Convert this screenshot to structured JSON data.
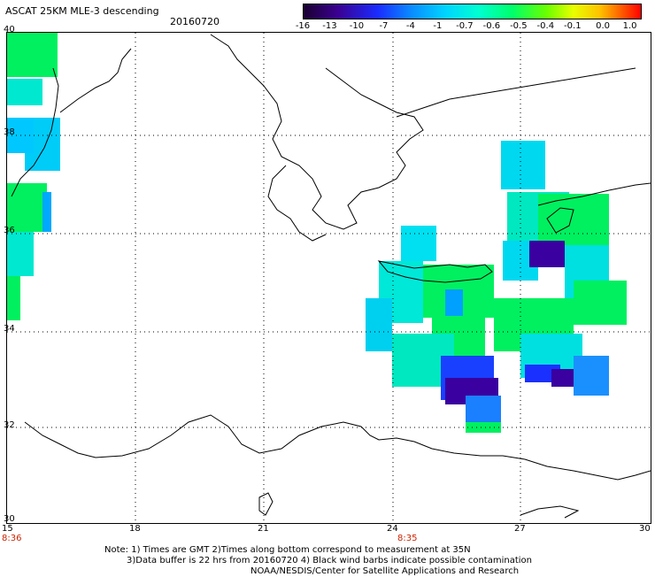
{
  "header": {
    "title": "ASCAT 25KM MLE-3 descending",
    "date": "20160720"
  },
  "colorbar": {
    "ticks": [
      "-16",
      "-13",
      "-10",
      "-7",
      "-4",
      "-1",
      "-0.7",
      "-0.6",
      "-0.5",
      "-0.4",
      "-0.1",
      "0.0",
      "1.0"
    ]
  },
  "axes": {
    "lon_labels": [
      "15",
      "18",
      "21",
      "24",
      "27",
      "30"
    ],
    "lat_labels": [
      "40",
      "38",
      "36",
      "34",
      "32",
      "30"
    ],
    "time_labels": [
      {
        "lon": "15",
        "time": "8:36"
      },
      {
        "lon": "24",
        "time": "8:35"
      }
    ]
  },
  "notes": {
    "line1": "Note: 1) Times are GMT 2)Times along bottom correspond to measurement at 35N",
    "line2": "3)Data buffer is 22 hrs from 20160720 4) Black wind barbs indicate possible contamination",
    "line3": "NOAA/NESDIS/Center for Satellite Applications and Research"
  },
  "colors": {
    "grid": "#000000",
    "coast": "#000000",
    "time_label": "#cc2200"
  }
}
